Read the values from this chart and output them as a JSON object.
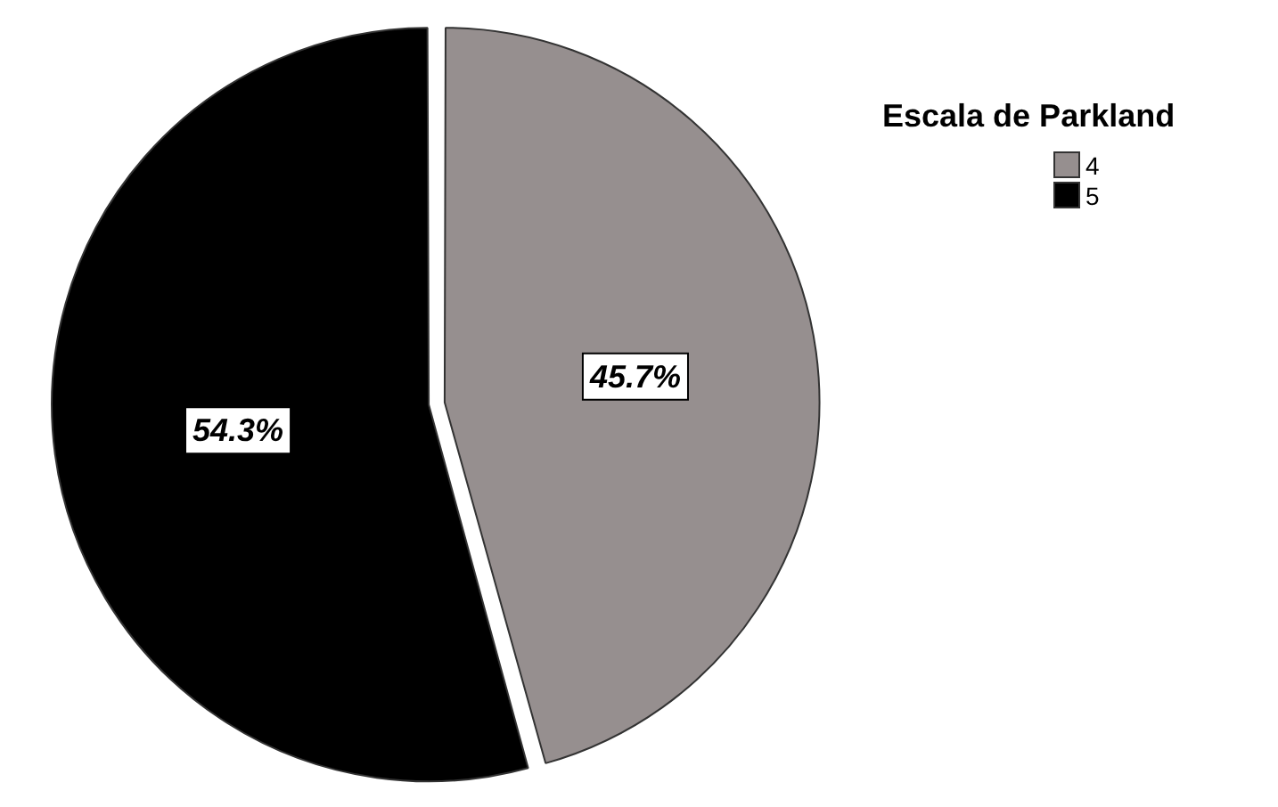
{
  "chart_data": {
    "type": "pie",
    "legend_title": "Escala de Parkland",
    "categories": [
      "4",
      "5"
    ],
    "values": [
      45.7,
      54.3
    ],
    "colors": [
      "#968f8f",
      "#000000"
    ],
    "value_labels": [
      "45.7%",
      "54.3%"
    ],
    "legend": "top right"
  }
}
